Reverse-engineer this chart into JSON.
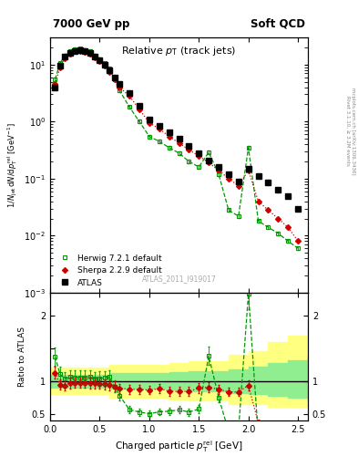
{
  "title_left": "7000 GeV pp",
  "title_right": "Soft QCD",
  "plot_title": "Relative p_{T} (track jets)",
  "xlabel": "Charged particle p_{T}^{rel} [GeV]",
  "ylabel_main": "1/N_{jet} dN/dp_{T}^{rel} [GeV^{-1}]",
  "ylabel_ratio": "Ratio to ATLAS",
  "watermark": "ATLAS_2011_I919017",
  "right_label1": "Rivet 3.1.10, ≥ 3.2M events",
  "right_label2": "mcplots.cern.ch [arXiv:1306.3436]",
  "atlas_x": [
    0.05,
    0.1,
    0.15,
    0.2,
    0.25,
    0.3,
    0.35,
    0.4,
    0.45,
    0.5,
    0.55,
    0.6,
    0.65,
    0.7,
    0.8,
    0.9,
    1.0,
    1.1,
    1.2,
    1.3,
    1.4,
    1.5,
    1.6,
    1.7,
    1.8,
    1.9,
    2.0,
    2.1,
    2.2,
    2.3,
    2.4,
    2.5
  ],
  "atlas_y": [
    4.0,
    9.5,
    14.0,
    16.0,
    17.5,
    18.0,
    17.0,
    16.0,
    14.0,
    12.0,
    10.0,
    8.0,
    6.0,
    4.5,
    3.2,
    1.9,
    1.1,
    0.85,
    0.65,
    0.5,
    0.38,
    0.28,
    0.21,
    0.16,
    0.12,
    0.09,
    0.15,
    0.11,
    0.085,
    0.065,
    0.05,
    0.03
  ],
  "herwig_x": [
    0.05,
    0.1,
    0.15,
    0.2,
    0.25,
    0.3,
    0.35,
    0.4,
    0.45,
    0.5,
    0.55,
    0.6,
    0.65,
    0.7,
    0.8,
    0.9,
    1.0,
    1.1,
    1.2,
    1.3,
    1.4,
    1.5,
    1.6,
    1.7,
    1.8,
    1.9,
    2.0,
    2.1,
    2.2,
    2.3,
    2.4,
    2.5
  ],
  "herwig_y": [
    5.5,
    10.5,
    14.5,
    17.0,
    18.5,
    19.0,
    18.0,
    17.0,
    14.5,
    12.5,
    10.5,
    8.5,
    5.5,
    3.5,
    1.8,
    1.0,
    0.55,
    0.45,
    0.35,
    0.28,
    0.2,
    0.16,
    0.29,
    0.12,
    0.028,
    0.022,
    0.35,
    0.018,
    0.014,
    0.011,
    0.008,
    0.006
  ],
  "sherpa_x": [
    0.05,
    0.1,
    0.15,
    0.2,
    0.25,
    0.3,
    0.35,
    0.4,
    0.45,
    0.5,
    0.55,
    0.6,
    0.65,
    0.7,
    0.8,
    0.9,
    1.0,
    1.1,
    1.2,
    1.3,
    1.4,
    1.5,
    1.6,
    1.7,
    1.8,
    1.9,
    2.0,
    2.1,
    2.2,
    2.3,
    2.4,
    2.5
  ],
  "sherpa_y": [
    4.5,
    9.0,
    13.0,
    15.5,
    17.0,
    17.5,
    16.5,
    15.5,
    13.5,
    11.5,
    9.5,
    7.5,
    5.5,
    4.0,
    2.8,
    1.65,
    0.95,
    0.75,
    0.55,
    0.42,
    0.32,
    0.25,
    0.19,
    0.14,
    0.1,
    0.075,
    0.14,
    0.04,
    0.028,
    0.02,
    0.014,
    0.008
  ],
  "atlas_color": "#000000",
  "herwig_color": "#009900",
  "sherpa_color": "#cc0000",
  "ylim_main": [
    0.001,
    30
  ],
  "xlim": [
    0.0,
    2.6
  ],
  "ratio_ylim": [
    0.4,
    2.35
  ],
  "band_x": [
    0.0,
    0.2,
    0.4,
    0.6,
    0.8,
    1.0,
    1.2,
    1.4,
    1.6,
    1.8,
    2.0,
    2.2,
    2.4,
    2.6
  ],
  "band_yellow_lo": [
    0.8,
    0.8,
    0.8,
    0.75,
    0.75,
    0.75,
    0.72,
    0.7,
    0.7,
    0.65,
    0.65,
    0.6,
    0.6,
    0.6
  ],
  "band_yellow_hi": [
    1.2,
    1.2,
    1.2,
    1.25,
    1.25,
    1.25,
    1.28,
    1.3,
    1.3,
    1.4,
    1.45,
    1.6,
    1.7,
    1.8
  ],
  "band_green_lo": [
    0.9,
    0.9,
    0.9,
    0.88,
    0.88,
    0.88,
    0.87,
    0.85,
    0.85,
    0.82,
    0.8,
    0.78,
    0.75,
    0.72
  ],
  "band_green_hi": [
    1.1,
    1.1,
    1.1,
    1.12,
    1.12,
    1.12,
    1.13,
    1.15,
    1.15,
    1.18,
    1.22,
    1.28,
    1.32,
    1.38
  ]
}
